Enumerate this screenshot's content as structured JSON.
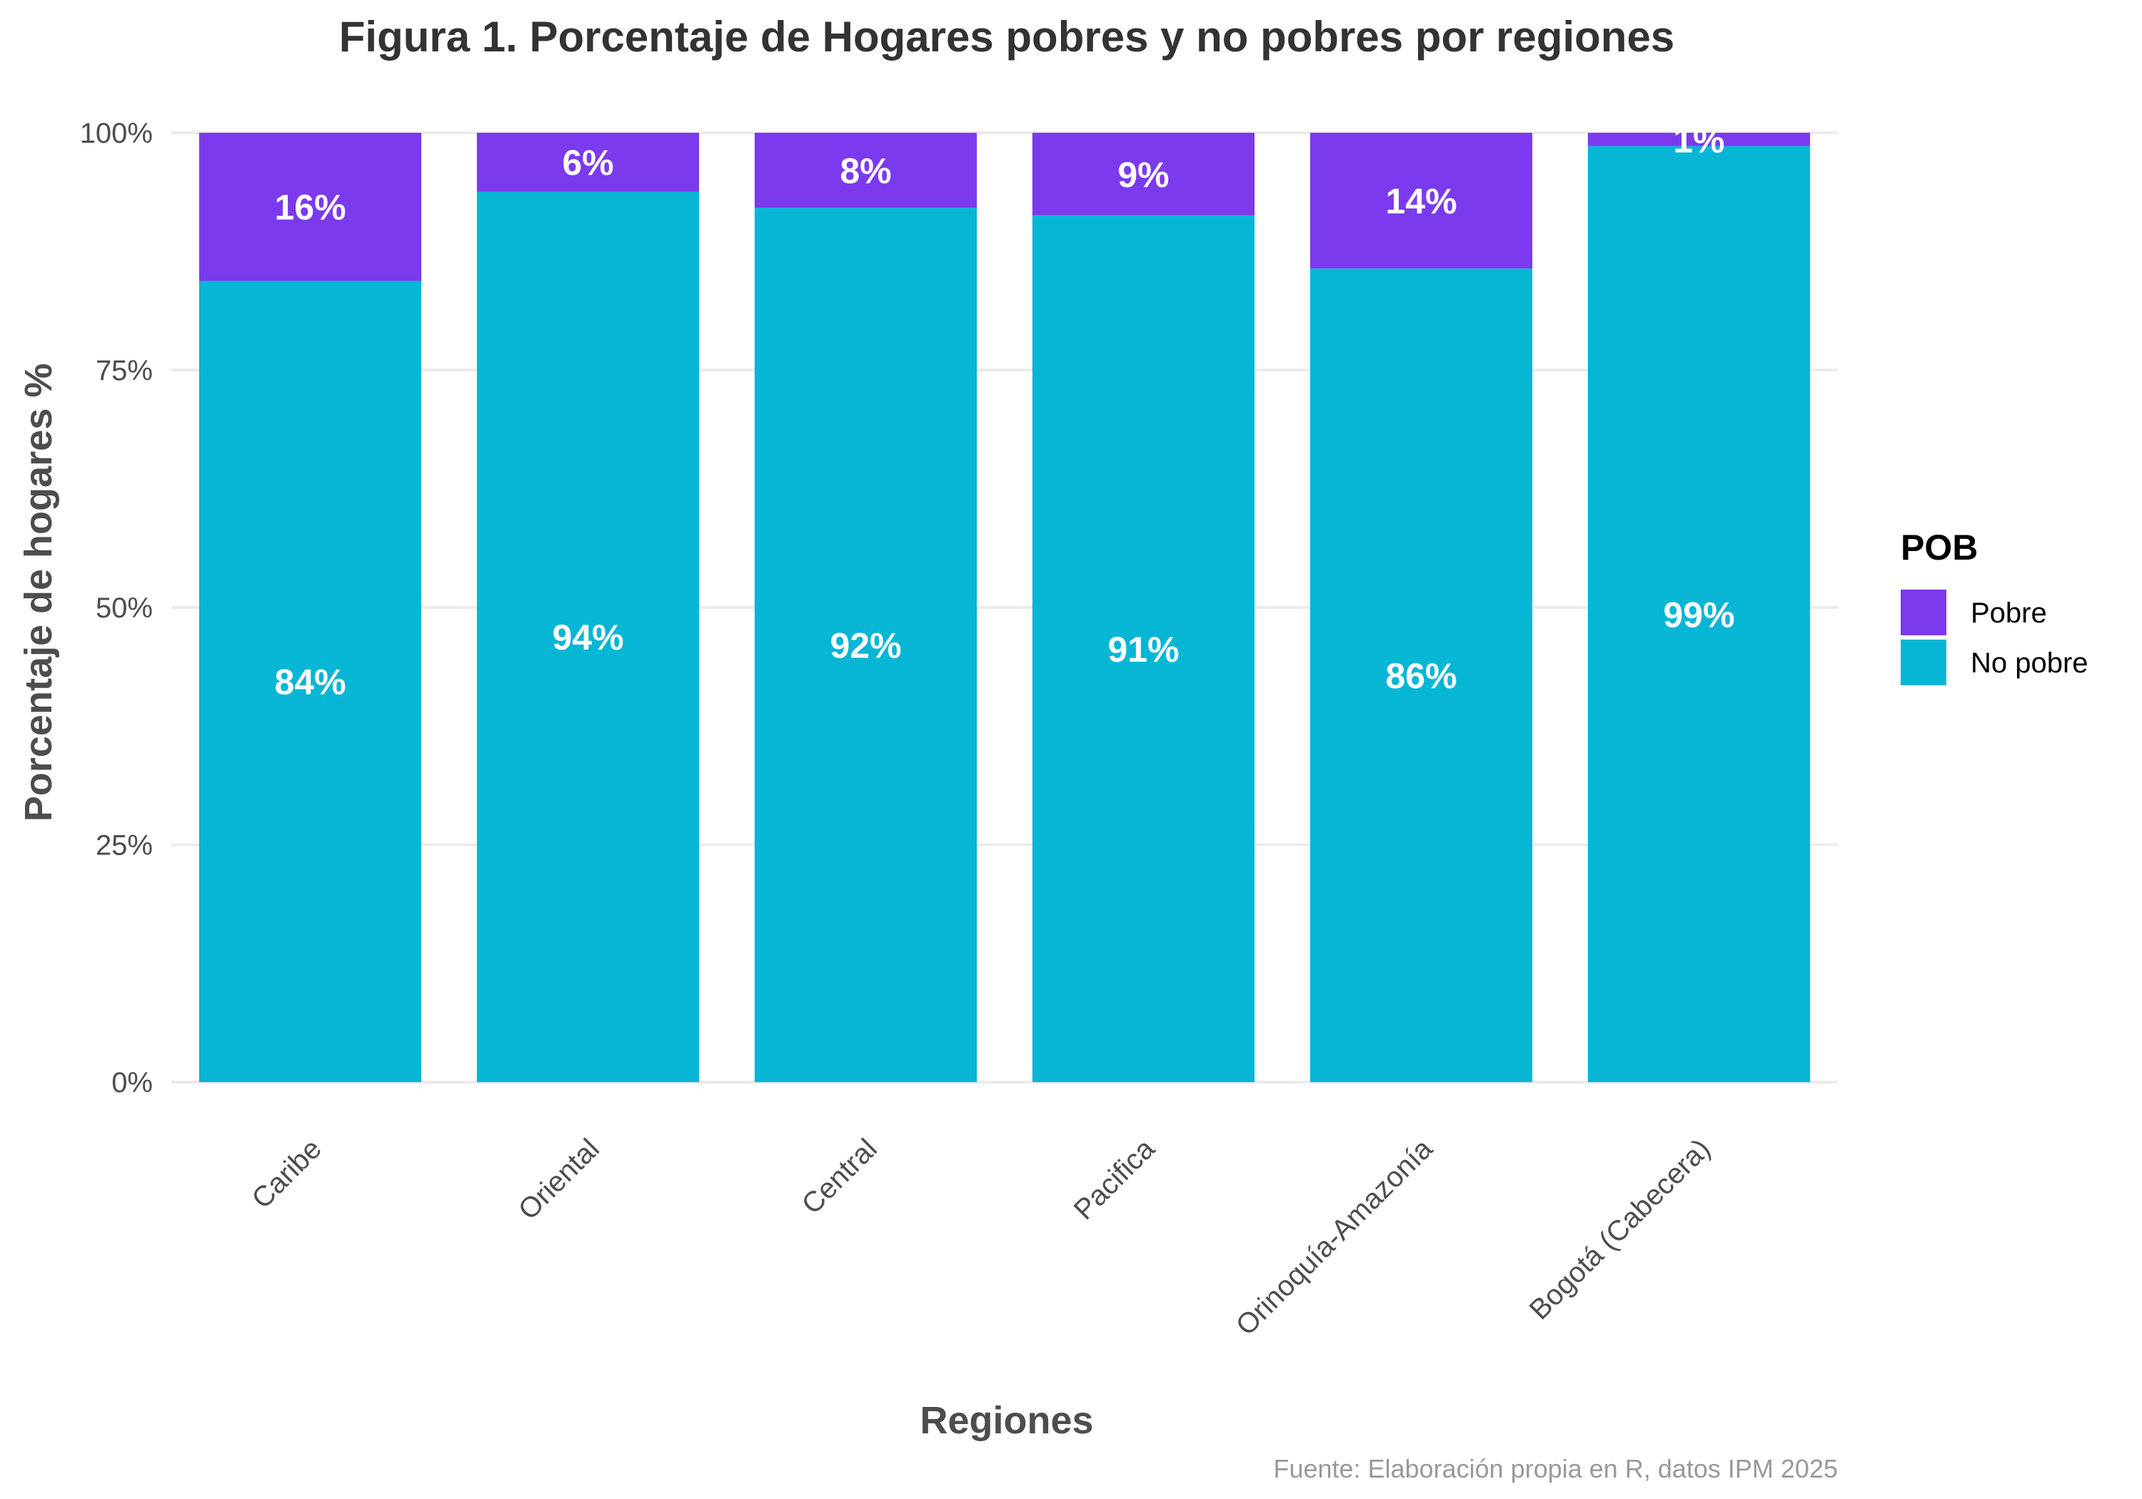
{
  "chart_data": {
    "type": "bar",
    "stacked": true,
    "title": "Figura 1. Porcentaje de Hogares pobres y no pobres por regiones",
    "xlabel": "Regiones",
    "ylabel": "Porcentaje de hogares %",
    "caption": "Fuente: Elaboración propia en R, datos IPM 2025",
    "categories": [
      "Caribe",
      "Oriental",
      "Central",
      "Pacifica",
      "Orinoquía-Amazonía",
      "Bogotá (Cabecera)"
    ],
    "series": [
      {
        "name": "No pobre",
        "color": "#07B6D5",
        "values": [
          84.4,
          93.8,
          92.1,
          91.3,
          85.7,
          98.6
        ],
        "labels": [
          "84%",
          "94%",
          "92%",
          "91%",
          "86%",
          "99%"
        ]
      },
      {
        "name": "Pobre",
        "color": "#7B3AED",
        "values": [
          15.6,
          6.2,
          7.9,
          8.7,
          14.3,
          1.4
        ],
        "labels": [
          "16%",
          "6%",
          "8%",
          "9%",
          "14%",
          "1%"
        ]
      }
    ],
    "ylim": [
      0,
      100
    ],
    "yticks": [
      0,
      25,
      50,
      75,
      100
    ],
    "ytick_labels": [
      "0%",
      "25%",
      "50%",
      "75%",
      "100%"
    ],
    "grid": true,
    "legend": {
      "title": "POB",
      "position": "right",
      "items": [
        {
          "label": "Pobre",
          "color": "#7B3AED"
        },
        {
          "label": "No pobre",
          "color": "#07B6D5"
        }
      ]
    }
  }
}
